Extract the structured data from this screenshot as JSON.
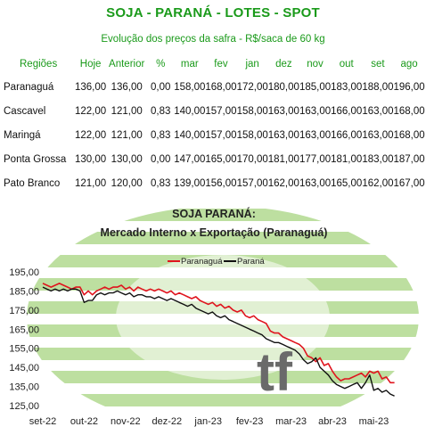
{
  "header": {
    "title": "SOJA - PARANÁ - LOTES - SPOT",
    "subtitle": "Evolução dos preços da safra - R$/saca de 60 kg"
  },
  "table": {
    "columns": [
      "Regiões",
      "Hoje",
      "Anterior",
      "%",
      "mar",
      "fev",
      "jan",
      "dez",
      "nov",
      "out",
      "set",
      "ago"
    ],
    "rows": [
      {
        "name": "Paranaguá",
        "hoje": "136,00",
        "anterior": "136,00",
        "pct": "0,00",
        "mar": "158,00",
        "fev": "168,00",
        "jan": "172,00",
        "dez": "180,00",
        "nov": "185,00",
        "out": "183,00",
        "set": "188,00",
        "ago": "196,00"
      },
      {
        "name": "Cascavel",
        "hoje": "122,00",
        "anterior": "121,00",
        "pct": "0,83",
        "mar": "140,00",
        "fev": "157,00",
        "jan": "158,00",
        "dez": "163,00",
        "nov": "163,00",
        "out": "166,00",
        "set": "163,00",
        "ago": "168,00"
      },
      {
        "name": "Maringá",
        "hoje": "122,00",
        "anterior": "121,00",
        "pct": "0,83",
        "mar": "140,00",
        "fev": "157,00",
        "jan": "158,00",
        "dez": "163,00",
        "nov": "163,00",
        "out": "166,00",
        "set": "163,00",
        "ago": "168,00"
      },
      {
        "name": "Ponta Grossa",
        "hoje": "130,00",
        "anterior": "130,00",
        "pct": "0,00",
        "mar": "147,00",
        "fev": "165,00",
        "jan": "170,00",
        "dez": "181,00",
        "nov": "177,00",
        "out": "181,00",
        "set": "183,00",
        "ago": "187,00"
      },
      {
        "name": "Pato Branco",
        "hoje": "121,00",
        "anterior": "120,00",
        "pct": "0,83",
        "mar": "139,00",
        "fev": "156,00",
        "jan": "157,00",
        "dez": "162,00",
        "nov": "163,00",
        "out": "165,00",
        "set": "162,00",
        "ago": "167,00"
      }
    ]
  },
  "colors": {
    "title_green": "#1a9a1a",
    "pct_blue": "#2a5aa8",
    "series_paranagua": "#e0141e",
    "series_parana": "#111111",
    "watermark_green": "#a8d48a"
  },
  "chart_data": {
    "type": "line",
    "title": "SOJA PARANÁ:",
    "subtitle": "Mercado Interno x Exportação (Paranaguá)",
    "xlabel": "",
    "ylabel": "",
    "ylim": [
      125,
      195
    ],
    "yticks": [
      "125,00",
      "135,00",
      "145,00",
      "155,00",
      "165,00",
      "175,00",
      "185,00",
      "195,00"
    ],
    "x_labels": [
      "set-22",
      "out-22",
      "nov-22",
      "dez-22",
      "jan-23",
      "fev-23",
      "mar-23",
      "abr-23",
      "mai-23"
    ],
    "legend_position": "top-center",
    "series": [
      {
        "name": "Paranaguá",
        "color": "#e0141e",
        "points": [
          [
            0,
            189
          ],
          [
            0.1,
            188
          ],
          [
            0.2,
            187
          ],
          [
            0.3,
            188
          ],
          [
            0.4,
            189
          ],
          [
            0.5,
            188
          ],
          [
            0.6,
            187
          ],
          [
            0.7,
            186
          ],
          [
            0.8,
            187
          ],
          [
            0.9,
            187
          ],
          [
            1.0,
            183
          ],
          [
            1.1,
            185
          ],
          [
            1.2,
            183
          ],
          [
            1.3,
            185
          ],
          [
            1.4,
            186
          ],
          [
            1.5,
            187
          ],
          [
            1.6,
            186
          ],
          [
            1.7,
            187
          ],
          [
            1.8,
            187
          ],
          [
            1.9,
            188
          ],
          [
            2.0,
            186
          ],
          [
            2.1,
            187
          ],
          [
            2.2,
            185
          ],
          [
            2.3,
            187
          ],
          [
            2.4,
            186
          ],
          [
            2.5,
            185
          ],
          [
            2.6,
            186
          ],
          [
            2.7,
            185
          ],
          [
            2.8,
            186
          ],
          [
            2.9,
            185
          ],
          [
            3.0,
            184
          ],
          [
            3.1,
            185
          ],
          [
            3.2,
            183
          ],
          [
            3.3,
            184
          ],
          [
            3.4,
            183
          ],
          [
            3.5,
            182
          ],
          [
            3.6,
            181
          ],
          [
            3.7,
            182
          ],
          [
            3.8,
            180
          ],
          [
            3.9,
            179
          ],
          [
            4.0,
            178
          ],
          [
            4.1,
            179
          ],
          [
            4.2,
            177
          ],
          [
            4.3,
            178
          ],
          [
            4.4,
            176
          ],
          [
            4.5,
            177
          ],
          [
            4.6,
            175
          ],
          [
            4.7,
            174
          ],
          [
            4.8,
            175
          ],
          [
            4.9,
            172
          ],
          [
            5.0,
            171
          ],
          [
            5.1,
            172
          ],
          [
            5.2,
            170
          ],
          [
            5.3,
            169
          ],
          [
            5.4,
            168
          ],
          [
            5.5,
            164
          ],
          [
            5.6,
            163
          ],
          [
            5.7,
            163
          ],
          [
            5.8,
            161
          ],
          [
            5.9,
            160
          ],
          [
            6.0,
            159
          ],
          [
            6.1,
            158
          ],
          [
            6.2,
            157
          ],
          [
            6.3,
            155
          ],
          [
            6.4,
            151
          ],
          [
            6.5,
            150
          ],
          [
            6.6,
            148
          ],
          [
            6.7,
            150
          ],
          [
            6.8,
            146
          ],
          [
            6.9,
            147
          ],
          [
            7.0,
            143
          ],
          [
            7.1,
            140
          ],
          [
            7.2,
            138
          ],
          [
            7.3,
            139
          ],
          [
            7.4,
            139
          ],
          [
            7.5,
            140
          ],
          [
            7.6,
            141
          ],
          [
            7.7,
            142
          ],
          [
            7.8,
            140
          ],
          [
            7.9,
            143
          ],
          [
            8.0,
            142
          ],
          [
            8.1,
            143
          ],
          [
            8.2,
            139
          ],
          [
            8.3,
            140
          ],
          [
            8.4,
            137
          ],
          [
            8.5,
            137
          ]
        ]
      },
      {
        "name": "Paraná",
        "color": "#111111",
        "points": [
          [
            0,
            187
          ],
          [
            0.1,
            186
          ],
          [
            0.2,
            185
          ],
          [
            0.3,
            186
          ],
          [
            0.4,
            185
          ],
          [
            0.5,
            186
          ],
          [
            0.6,
            185
          ],
          [
            0.7,
            186
          ],
          [
            0.8,
            186
          ],
          [
            0.9,
            185
          ],
          [
            1.0,
            179
          ],
          [
            1.1,
            180
          ],
          [
            1.2,
            180
          ],
          [
            1.3,
            183
          ],
          [
            1.4,
            184
          ],
          [
            1.5,
            183
          ],
          [
            1.6,
            184
          ],
          [
            1.7,
            184
          ],
          [
            1.8,
            185
          ],
          [
            1.9,
            184
          ],
          [
            2.0,
            183
          ],
          [
            2.1,
            184
          ],
          [
            2.2,
            182
          ],
          [
            2.3,
            183
          ],
          [
            2.4,
            183
          ],
          [
            2.5,
            182
          ],
          [
            2.6,
            182
          ],
          [
            2.7,
            181
          ],
          [
            2.8,
            182
          ],
          [
            2.9,
            181
          ],
          [
            3.0,
            180
          ],
          [
            3.1,
            181
          ],
          [
            3.2,
            180
          ],
          [
            3.3,
            179
          ],
          [
            3.4,
            178
          ],
          [
            3.5,
            177
          ],
          [
            3.6,
            178
          ],
          [
            3.7,
            176
          ],
          [
            3.8,
            175
          ],
          [
            3.9,
            174
          ],
          [
            4.0,
            173
          ],
          [
            4.1,
            174
          ],
          [
            4.2,
            172
          ],
          [
            4.3,
            171
          ],
          [
            4.4,
            172
          ],
          [
            4.5,
            170
          ],
          [
            4.6,
            169
          ],
          [
            4.7,
            168
          ],
          [
            4.8,
            167
          ],
          [
            4.9,
            166
          ],
          [
            5.0,
            165
          ],
          [
            5.1,
            164
          ],
          [
            5.2,
            163
          ],
          [
            5.3,
            162
          ],
          [
            5.4,
            160
          ],
          [
            5.5,
            159
          ],
          [
            5.6,
            158
          ],
          [
            5.7,
            158
          ],
          [
            5.8,
            157
          ],
          [
            5.9,
            156
          ],
          [
            6.0,
            155
          ],
          [
            6.1,
            154
          ],
          [
            6.2,
            152
          ],
          [
            6.3,
            149
          ],
          [
            6.4,
            147
          ],
          [
            6.5,
            148
          ],
          [
            6.6,
            150
          ],
          [
            6.7,
            145
          ],
          [
            6.8,
            143
          ],
          [
            6.9,
            141
          ],
          [
            7.0,
            138
          ],
          [
            7.1,
            136
          ],
          [
            7.2,
            135
          ],
          [
            7.3,
            134
          ],
          [
            7.4,
            135
          ],
          [
            7.5,
            136
          ],
          [
            7.6,
            137
          ],
          [
            7.7,
            134
          ],
          [
            7.8,
            137
          ],
          [
            7.9,
            141
          ],
          [
            8.0,
            133
          ],
          [
            8.1,
            134
          ],
          [
            8.2,
            132
          ],
          [
            8.3,
            133
          ],
          [
            8.4,
            131
          ],
          [
            8.5,
            130
          ]
        ]
      }
    ]
  }
}
